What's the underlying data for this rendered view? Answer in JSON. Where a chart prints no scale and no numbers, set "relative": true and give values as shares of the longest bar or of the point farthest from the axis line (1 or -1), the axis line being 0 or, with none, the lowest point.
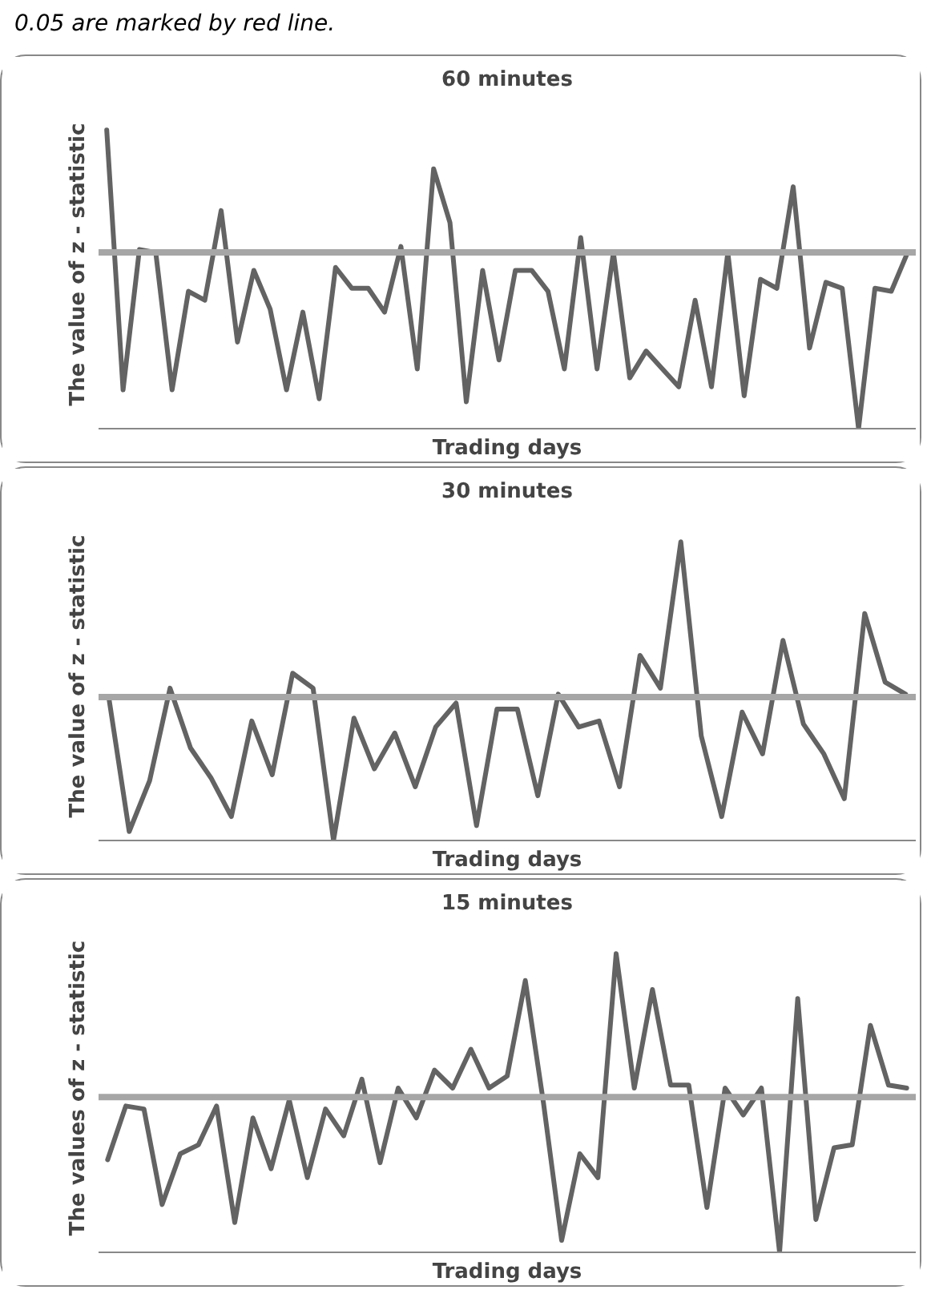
{
  "chart_data": [
    {
      "type": "line",
      "title": "60 minutes",
      "xlabel": "Trading days",
      "ylabel": "The value of z - statistic",
      "relative": true,
      "tick_labels": false,
      "annotations": [
        "0.05 are marked by red line."
      ],
      "categories": [
        null,
        null,
        null,
        null,
        null,
        null,
        null,
        null,
        null,
        null,
        null,
        null,
        null,
        null,
        null,
        null,
        null,
        null,
        null,
        null,
        null,
        null,
        null,
        null,
        null,
        null,
        null,
        null,
        null,
        null,
        null,
        null,
        null,
        null,
        null,
        null,
        null,
        null,
        null,
        null,
        null,
        null,
        null,
        null,
        null,
        null,
        null,
        null,
        null,
        null
      ],
      "series": [
        {
          "color": "#636363",
          "values": [
            1.0,
            0.13,
            0.6,
            0.59,
            0.13,
            0.46,
            0.43,
            0.73,
            0.29,
            0.53,
            0.4,
            0.13,
            0.39,
            0.1,
            0.54,
            0.47,
            0.47,
            0.39,
            0.61,
            0.2,
            0.87,
            0.69,
            0.09,
            0.53,
            0.23,
            0.53,
            0.53,
            0.46,
            0.2,
            0.64,
            0.2,
            0.59,
            0.17,
            0.26,
            0.2,
            0.14,
            0.43,
            0.14,
            0.59,
            0.11,
            0.5,
            0.47,
            0.81,
            0.27,
            0.49,
            0.47,
            0.0,
            0.47,
            0.46,
            0.59
          ]
        }
      ],
      "ref_lines": [
        {
          "axis": "y",
          "value": 0.59,
          "color": "#a6a6a6"
        }
      ]
    },
    {
      "type": "line",
      "title": "30 minutes",
      "xlabel": "Trading days",
      "ylabel": "The value of z - statistic",
      "relative": true,
      "tick_labels": false,
      "categories": [
        null,
        null,
        null,
        null,
        null,
        null,
        null,
        null,
        null,
        null,
        null,
        null,
        null,
        null,
        null,
        null,
        null,
        null,
        null,
        null,
        null,
        null,
        null,
        null,
        null,
        null,
        null,
        null,
        null,
        null,
        null,
        null,
        null,
        null,
        null,
        null,
        null,
        null,
        null,
        null
      ],
      "series": [
        {
          "color": "#636363",
          "values": [
            0.48,
            0.03,
            0.2,
            0.51,
            0.31,
            0.21,
            0.08,
            0.4,
            0.22,
            0.56,
            0.51,
            0.0,
            0.41,
            0.24,
            0.36,
            0.18,
            0.38,
            0.46,
            0.05,
            0.44,
            0.44,
            0.15,
            0.49,
            0.38,
            0.4,
            0.18,
            0.62,
            0.51,
            1.0,
            0.35,
            0.08,
            0.43,
            0.29,
            0.67,
            0.39,
            0.29,
            0.14,
            0.76,
            0.53,
            0.49
          ]
        }
      ],
      "ref_lines": [
        {
          "axis": "y",
          "value": 0.48,
          "color": "#a6a6a6"
        }
      ]
    },
    {
      "type": "line",
      "title": "15 minutes",
      "xlabel": "Trading days",
      "ylabel": "The values of z - statistic",
      "relative": true,
      "tick_labels": false,
      "categories": [
        null,
        null,
        null,
        null,
        null,
        null,
        null,
        null,
        null,
        null,
        null,
        null,
        null,
        null,
        null,
        null,
        null,
        null,
        null,
        null,
        null,
        null,
        null,
        null,
        null,
        null,
        null,
        null,
        null,
        null,
        null,
        null,
        null,
        null,
        null,
        null,
        null,
        null,
        null,
        null,
        null,
        null,
        null,
        null,
        null
      ],
      "series": [
        {
          "color": "#636363",
          "values": [
            0.31,
            0.49,
            0.48,
            0.16,
            0.33,
            0.36,
            0.49,
            0.1,
            0.45,
            0.28,
            0.51,
            0.25,
            0.48,
            0.39,
            0.58,
            0.3,
            0.55,
            0.45,
            0.61,
            0.55,
            0.68,
            0.55,
            0.59,
            0.91,
            0.5,
            0.04,
            0.33,
            0.25,
            1.0,
            0.55,
            0.88,
            0.56,
            0.56,
            0.15,
            0.55,
            0.46,
            0.55,
            0.0,
            0.85,
            0.11,
            0.35,
            0.36,
            0.76,
            0.56,
            0.55
          ]
        }
      ],
      "ref_lines": [
        {
          "axis": "y",
          "value": 0.52,
          "color": "#a6a6a6"
        }
      ]
    }
  ]
}
